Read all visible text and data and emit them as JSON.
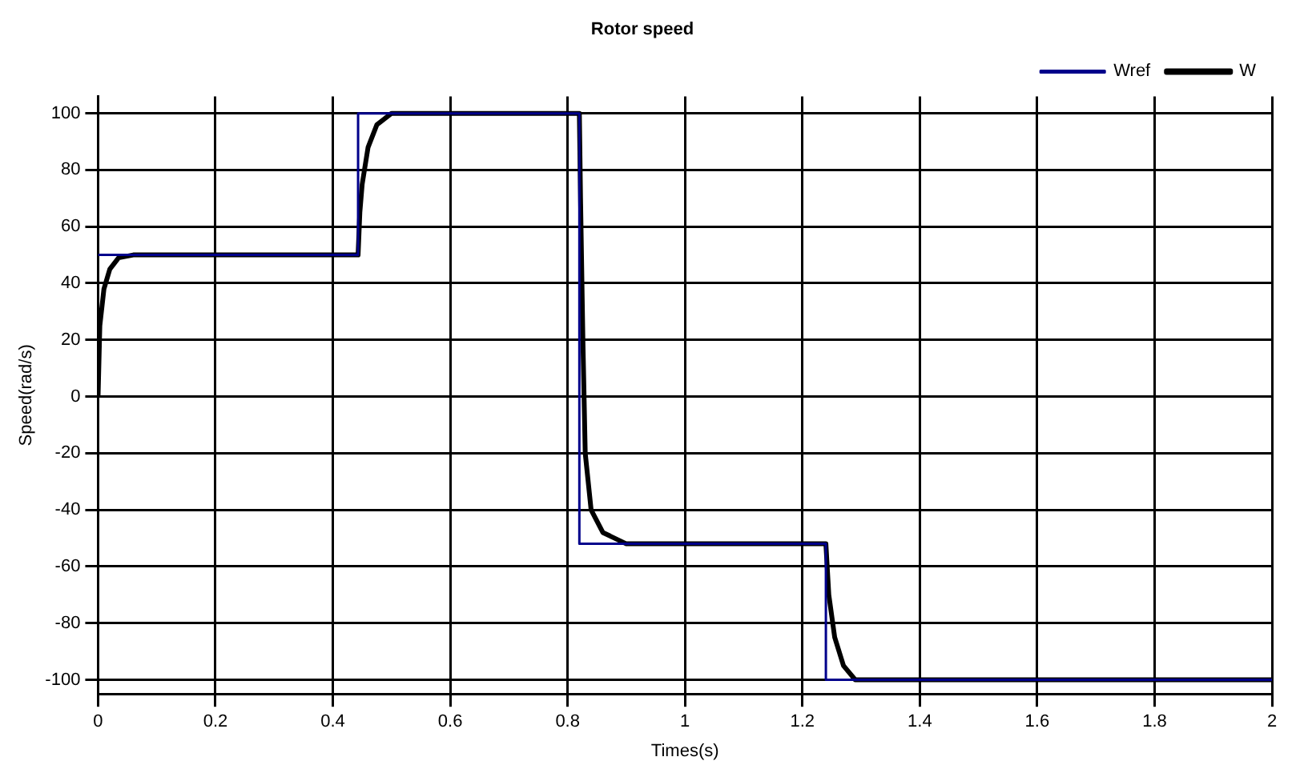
{
  "chart_data": {
    "type": "line",
    "title": "Rotor speed",
    "xlabel": "Times(s)",
    "ylabel": "Speed(rad/s)",
    "xlim": [
      0,
      2
    ],
    "xticks": [
      0,
      0.2,
      0.4,
      0.6,
      0.8,
      1,
      1.2,
      1.4,
      1.6,
      1.8,
      2
    ],
    "ylim": [
      -105,
      106
    ],
    "yticks": [
      -100,
      -80,
      -60,
      -40,
      -20,
      0,
      20,
      40,
      60,
      80,
      100
    ],
    "grid": true,
    "legend": "top right",
    "marker": "none",
    "line_style": "solid",
    "series": [
      {
        "name": "Wref",
        "color": "#00008b",
        "x": [
          0,
          0.443,
          0.443,
          0.82,
          0.82,
          1.24,
          1.24,
          2
        ],
        "values": [
          50,
          50,
          100,
          100,
          -52,
          -52,
          -100,
          -100
        ]
      },
      {
        "name": "W",
        "color": "#000000",
        "x": [
          0,
          0.003,
          0.01,
          0.02,
          0.035,
          0.06,
          0.443,
          0.446,
          0.45,
          0.46,
          0.475,
          0.5,
          0.82,
          0.822,
          0.826,
          0.83,
          0.84,
          0.86,
          0.9,
          1.24,
          1.245,
          1.255,
          1.27,
          1.29,
          2
        ],
        "values": [
          0,
          25,
          38,
          45,
          49,
          50,
          50,
          65,
          75,
          88,
          96,
          100,
          100,
          70,
          20,
          -20,
          -40,
          -48,
          -52,
          -52,
          -70,
          -85,
          -95,
          -100,
          -100
        ]
      }
    ]
  }
}
